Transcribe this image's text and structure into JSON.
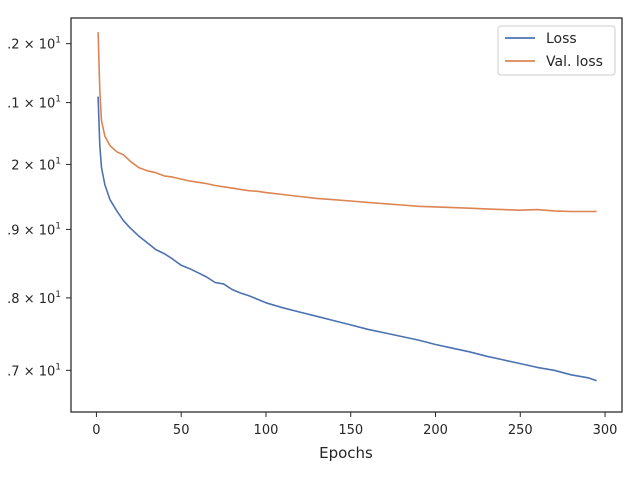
{
  "chart_data": {
    "type": "line",
    "title": "",
    "xlabel": "Epochs",
    "ylabel": "",
    "yscale": "log",
    "xlim": [
      -15,
      310
    ],
    "ylim": [
      16.45,
      22.45
    ],
    "xticks": [
      0,
      50,
      100,
      150,
      200,
      250,
      300
    ],
    "xtick_labels": [
      "0",
      "50",
      "100",
      "150",
      "200",
      "250",
      "300"
    ],
    "yticks": [
      17,
      18,
      19,
      20,
      21,
      22
    ],
    "ytick_labels": [
      {
        "base": ".7 × 10",
        "exp": "1"
      },
      {
        "base": ".8 × 10",
        "exp": "1"
      },
      {
        "base": ".9 × 10",
        "exp": "1"
      },
      {
        "base": "2 × 10",
        "exp": "1"
      },
      {
        "base": ".1 × 10",
        "exp": "1"
      },
      {
        "base": ".2 × 10",
        "exp": "1"
      }
    ],
    "grid": false,
    "legend_position": "top-right",
    "series": [
      {
        "name": "Loss",
        "color": "#4c72b0",
        "x": [
          1,
          2,
          3,
          5,
          8,
          12,
          16,
          20,
          25,
          30,
          35,
          40,
          45,
          50,
          55,
          60,
          65,
          70,
          75,
          80,
          85,
          90,
          95,
          100,
          110,
          120,
          130,
          140,
          150,
          160,
          170,
          180,
          190,
          200,
          210,
          220,
          230,
          240,
          250,
          260,
          270,
          280,
          290,
          295
        ],
        "y": [
          21.1,
          20.3,
          19.95,
          19.68,
          19.45,
          19.28,
          19.13,
          19.02,
          18.9,
          18.8,
          18.7,
          18.64,
          18.56,
          18.47,
          18.42,
          18.36,
          18.3,
          18.22,
          18.2,
          18.12,
          18.07,
          18.03,
          17.98,
          17.93,
          17.86,
          17.8,
          17.74,
          17.68,
          17.62,
          17.56,
          17.51,
          17.46,
          17.41,
          17.35,
          17.3,
          17.25,
          17.19,
          17.14,
          17.09,
          17.04,
          17.0,
          16.94,
          16.9,
          16.86
        ]
      },
      {
        "name": "Val. loss",
        "color": "#dd8452",
        "x": [
          1,
          2,
          3,
          5,
          8,
          12,
          16,
          20,
          25,
          30,
          35,
          40,
          45,
          50,
          55,
          60,
          65,
          70,
          75,
          80,
          85,
          90,
          95,
          100,
          110,
          120,
          130,
          140,
          150,
          160,
          170,
          180,
          190,
          200,
          210,
          220,
          230,
          240,
          250,
          260,
          270,
          280,
          290,
          295
        ],
        "y": [
          22.2,
          21.2,
          20.7,
          20.45,
          20.3,
          20.2,
          20.15,
          20.05,
          19.95,
          19.9,
          19.87,
          19.82,
          19.8,
          19.77,
          19.74,
          19.72,
          19.7,
          19.67,
          19.65,
          19.63,
          19.61,
          19.59,
          19.58,
          19.56,
          19.53,
          19.5,
          19.47,
          19.45,
          19.43,
          19.41,
          19.39,
          19.37,
          19.35,
          19.34,
          19.33,
          19.32,
          19.31,
          19.3,
          19.29,
          19.3,
          19.28,
          19.27,
          19.27,
          19.27
        ]
      }
    ]
  }
}
